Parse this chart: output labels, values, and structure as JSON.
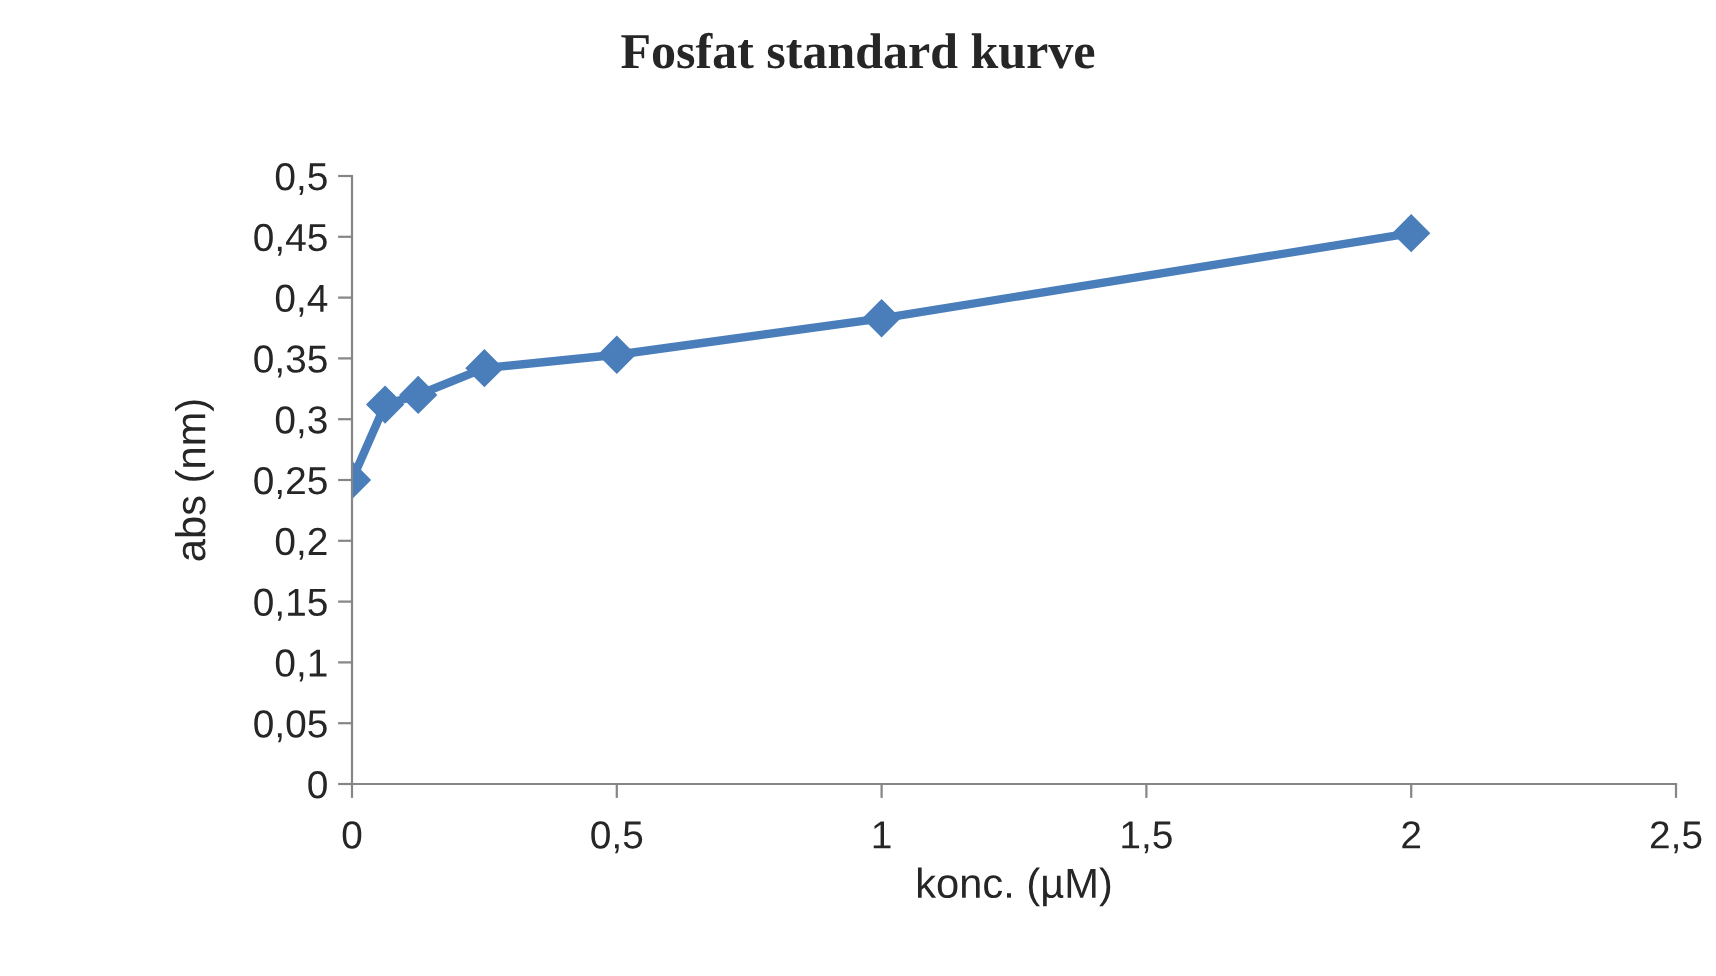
{
  "chart_data": {
    "type": "line",
    "title": "Fosfat standard kurve",
    "xlabel": "konc. (µM)",
    "ylabel": "abs (nm)",
    "x": [
      0,
      0.0625,
      0.125,
      0.25,
      0.5,
      1,
      2
    ],
    "series": [
      {
        "color": "#4a7ebb",
        "values": [
          0.25,
          0.312,
          0.32,
          0.342,
          0.353,
          0.383,
          0.453
        ]
      }
    ],
    "xlim": [
      0,
      2.5
    ],
    "ylim": [
      0,
      0.5
    ],
    "xticks": [
      0,
      {
        "value": 0.5,
        "label": "0,5"
      },
      1,
      {
        "value": 1.5,
        "label": "1,5"
      },
      2,
      {
        "value": 2.5,
        "label": "2,5"
      }
    ],
    "yticks": [
      0,
      {
        "value": 0.05,
        "label": "0,05"
      },
      {
        "value": 0.1,
        "label": "0,1"
      },
      {
        "value": 0.15,
        "label": "0,15"
      },
      {
        "value": 0.2,
        "label": "0,2"
      },
      {
        "value": 0.25,
        "label": "0,25"
      },
      {
        "value": 0.3,
        "label": "0,3"
      },
      {
        "value": 0.35,
        "label": "0,35"
      },
      {
        "value": 0.4,
        "label": "0,4"
      },
      {
        "value": 0.45,
        "label": "0,45"
      },
      {
        "value": 0.5,
        "label": "0,5"
      }
    ],
    "grid": false,
    "legend": false,
    "marker": "diamond",
    "line_style": "solid"
  }
}
